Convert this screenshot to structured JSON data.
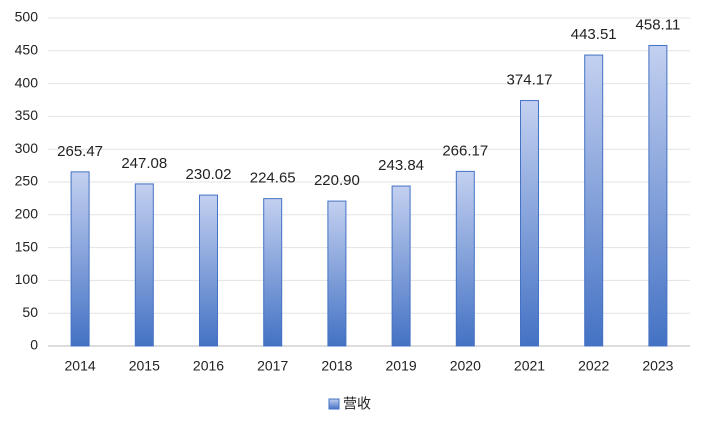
{
  "chart_data": {
    "type": "bar",
    "categories": [
      "2014",
      "2015",
      "2016",
      "2017",
      "2018",
      "2019",
      "2020",
      "2021",
      "2022",
      "2023"
    ],
    "series": [
      {
        "name": "营收",
        "color": "#4472c4",
        "values": [
          265.47,
          247.08,
          230.02,
          224.65,
          220.9,
          243.84,
          266.17,
          374.17,
          443.51,
          458.11
        ],
        "value_labels": [
          "265.47",
          "247.08",
          "230.02",
          "224.65",
          "220.90",
          "243.84",
          "266.17",
          "374.17",
          "443.51",
          "458.11"
        ]
      }
    ],
    "ylim": [
      0,
      500
    ],
    "yticks": [
      0,
      50,
      100,
      150,
      200,
      250,
      300,
      350,
      400,
      450,
      500
    ],
    "grid": true,
    "legend": "bottom"
  }
}
